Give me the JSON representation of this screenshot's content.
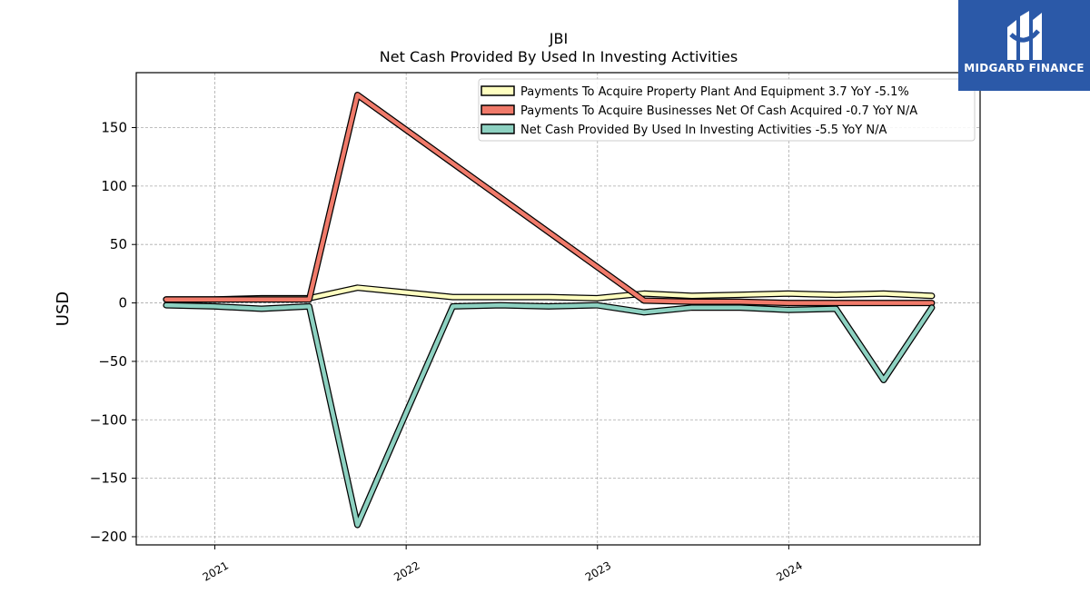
{
  "title": "JBI",
  "subtitle": "Net Cash Provided By Used In Investing Activities",
  "logo": {
    "text": "MIDGARD FINANCE",
    "background": "#2b59a8"
  },
  "chart_data": {
    "type": "line",
    "ylabel": "USD",
    "xlabel": "",
    "ylim": [
      -207,
      197
    ],
    "xlim": [
      "2020-08-04",
      "2024-12-31"
    ],
    "yticks": [
      -200,
      -150,
      -100,
      -50,
      0,
      50,
      100,
      150
    ],
    "ytick_labels": [
      "−200",
      "−150",
      "−100",
      "−50",
      "0",
      "50",
      "100",
      "150"
    ],
    "xticks": [
      "2021-01-01",
      "2022-01-01",
      "2023-01-01",
      "2024-01-01"
    ],
    "xtick_labels": [
      "2021",
      "2022",
      "2023",
      "2024"
    ],
    "grid": true,
    "legend_position": "top-right",
    "x": [
      "2020-09-30",
      "2020-12-31",
      "2021-03-31",
      "2021-06-30",
      "2021-09-30",
      "2021-12-31",
      "2022-03-31",
      "2022-06-30",
      "2022-09-30",
      "2022-12-31",
      "2023-03-31",
      "2023-06-30",
      "2023-09-30",
      "2023-12-31",
      "2024-03-31",
      "2024-06-30",
      "2024-09-30"
    ],
    "series": [
      {
        "name": "Payments To Acquire Property Plant And Equipment  3.7 YoY -5.1%",
        "color": "#ffffc0",
        "values": [
          3,
          3,
          4,
          4,
          13,
          9,
          5,
          5,
          5,
          4,
          8,
          6,
          7,
          8,
          7,
          8,
          6
        ]
      },
      {
        "name": "Payments To Acquire Businesses Net Of Cash Acquired  -0.7 YoY N/A",
        "color": "#f07a6a",
        "values": [
          3,
          3,
          3,
          3,
          178,
          null,
          null,
          null,
          null,
          null,
          2,
          1,
          1,
          0,
          0,
          0,
          0
        ]
      },
      {
        "name": "Net Cash Provided By Used In Investing Activities  -5.5 YoY N/A",
        "color": "#8dd1c1",
        "values": [
          -2,
          -3,
          -5,
          -3,
          -190,
          -95,
          -3,
          -2,
          -3,
          -2,
          -8,
          -4,
          -4,
          -6,
          -5,
          -66,
          -4
        ]
      }
    ]
  }
}
